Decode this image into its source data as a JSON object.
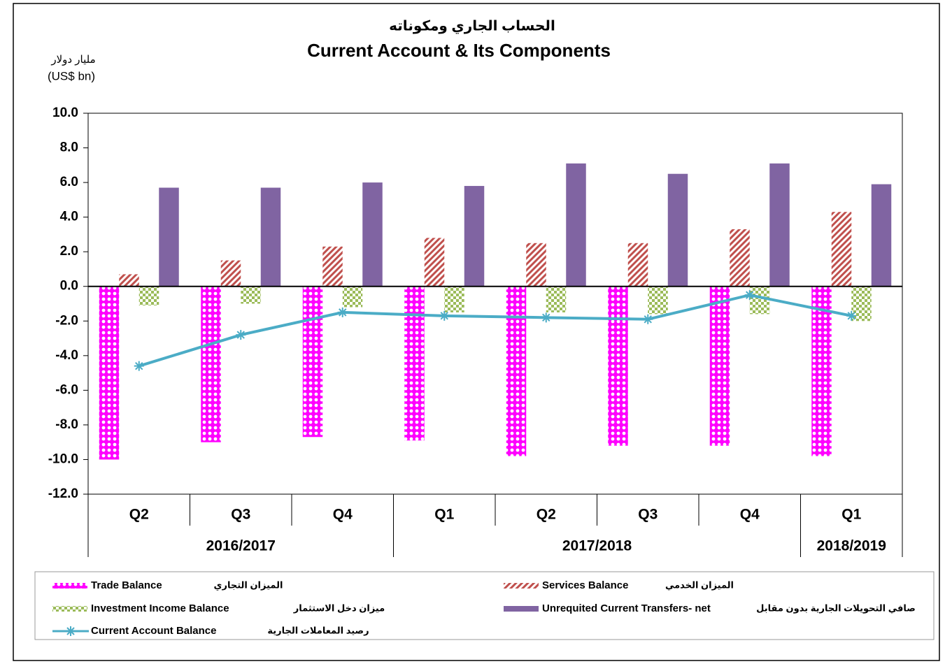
{
  "chart_data": {
    "type": "bar",
    "title_ar": "الحساب الجاري ومكوناته",
    "title": "Current Account & Its Components",
    "y_label_ar": "مليار دولار",
    "y_label": "(US$ bn)",
    "category_groups": [
      {
        "label": "2016/2017",
        "categories": [
          "Q2",
          "Q3",
          "Q4"
        ]
      },
      {
        "label": "2017/2018",
        "categories": [
          "Q1",
          "Q2",
          "Q3",
          "Q4"
        ]
      },
      {
        "label": "2018/2019",
        "categories": [
          "Q1"
        ]
      }
    ],
    "ylim": [
      -12,
      10
    ],
    "yticks": [
      {
        "value": -12,
        "label": "-12.0"
      },
      {
        "value": -10,
        "label": "-10.0"
      },
      {
        "value": -8,
        "label": "-8.0"
      },
      {
        "value": -6,
        "label": "-6.0"
      },
      {
        "value": -4,
        "label": "-4.0"
      },
      {
        "value": -2,
        "label": "-2.0"
      },
      {
        "value": 0,
        "label": "0.0"
      },
      {
        "value": 2,
        "label": "2.0"
      },
      {
        "value": 4,
        "label": "4.0"
      },
      {
        "value": 6,
        "label": "6.0"
      },
      {
        "value": 8,
        "label": "8.0"
      },
      {
        "value": 10,
        "label": "10.0"
      }
    ],
    "grid": false,
    "series": [
      {
        "name": "Trade Balance",
        "name_ar": "الميزان التجاري",
        "type": "bar",
        "color": "#ff00ff",
        "pattern": "dots",
        "values": [
          -10.0,
          -9.0,
          -8.7,
          -8.9,
          -9.8,
          -9.2,
          -9.2,
          -9.8
        ]
      },
      {
        "name": "Services Balance",
        "name_ar": "الميزان الخدمي",
        "type": "bar",
        "color": "#c0504d",
        "pattern": "hatch",
        "values": [
          0.7,
          1.5,
          2.3,
          2.8,
          2.5,
          2.5,
          3.3,
          4.3
        ]
      },
      {
        "name": "Investment Income Balance",
        "name_ar": "ميزان دخل الاستثمار",
        "type": "bar",
        "color": "#9bbb59",
        "pattern": "checker",
        "values": [
          -1.1,
          -1.0,
          -1.2,
          -1.5,
          -1.5,
          -1.6,
          -1.6,
          -2.0
        ]
      },
      {
        "name": "Unrequited Current Transfers- net",
        "name_ar": "صافي التحويلات الجارية بدون مقابل",
        "type": "bar",
        "color": "#8064a2",
        "pattern": "solid",
        "values": [
          5.7,
          5.7,
          6.0,
          5.8,
          7.1,
          6.5,
          7.1,
          5.9
        ]
      },
      {
        "name": "Current Account Balance",
        "name_ar": "رصيد المعاملات الجارية",
        "type": "line",
        "color": "#4bacc6",
        "values": [
          -4.6,
          -2.8,
          -1.5,
          -1.7,
          -1.8,
          -1.9,
          -0.5,
          -1.7
        ]
      }
    ]
  }
}
